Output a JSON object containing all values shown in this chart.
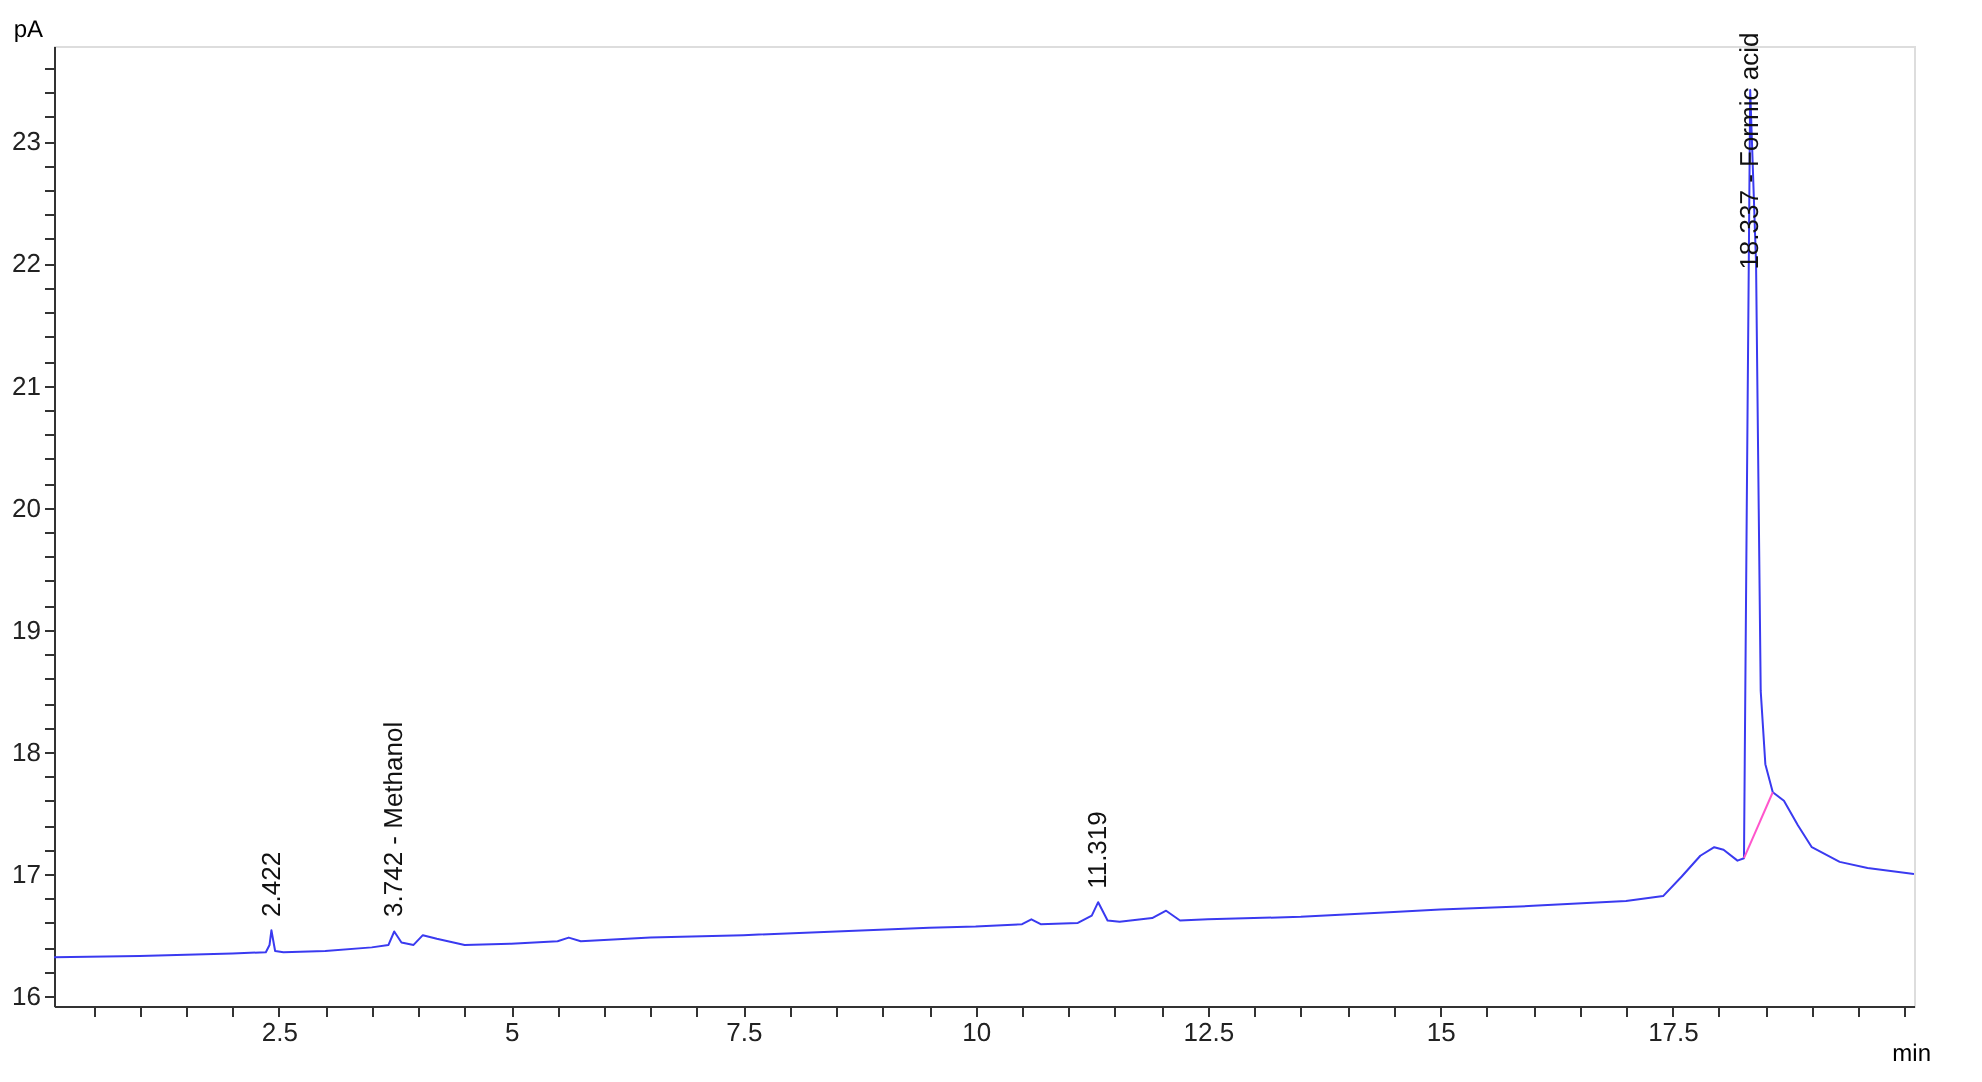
{
  "chart_data": {
    "type": "line",
    "xlabel": "min",
    "ylabel": "pA",
    "xlim": [
      0.08,
      20.1
    ],
    "ylim": [
      15.92,
      23.78
    ],
    "xticks": [
      {
        "value": 0.5,
        "label": null
      },
      {
        "value": 1.0,
        "label": null
      },
      {
        "value": 1.5,
        "label": null
      },
      {
        "value": 2.0,
        "label": null
      },
      2.5,
      {
        "value": 3.0,
        "label": null
      },
      {
        "value": 3.5,
        "label": null
      },
      {
        "value": 4.0,
        "label": null
      },
      {
        "value": 4.5,
        "label": null
      },
      5,
      {
        "value": 5.5,
        "label": null
      },
      {
        "value": 6.0,
        "label": null
      },
      {
        "value": 6.5,
        "label": null
      },
      {
        "value": 7.0,
        "label": null
      },
      7.5,
      {
        "value": 8.0,
        "label": null
      },
      {
        "value": 8.5,
        "label": null
      },
      {
        "value": 9.0,
        "label": null
      },
      {
        "value": 9.5,
        "label": null
      },
      10,
      {
        "value": 10.5,
        "label": null
      },
      {
        "value": 11.0,
        "label": null
      },
      {
        "value": 11.5,
        "label": null
      },
      {
        "value": 12.0,
        "label": null
      },
      12.5,
      {
        "value": 13.0,
        "label": null
      },
      {
        "value": 13.5,
        "label": null
      },
      {
        "value": 14.0,
        "label": null
      },
      {
        "value": 14.5,
        "label": null
      },
      15,
      {
        "value": 15.5,
        "label": null
      },
      {
        "value": 16.0,
        "label": null
      },
      {
        "value": 16.5,
        "label": null
      },
      {
        "value": 17.0,
        "label": null
      },
      17.5,
      {
        "value": 18.0,
        "label": null
      },
      {
        "value": 18.5,
        "label": null
      },
      {
        "value": 19.0,
        "label": null
      },
      {
        "value": 19.5,
        "label": null
      },
      {
        "value": 20.0,
        "label": null
      }
    ],
    "yticks": [
      16,
      {
        "value": 16.2,
        "label": null
      },
      {
        "value": 16.4,
        "label": null
      },
      {
        "value": 16.6,
        "label": null
      },
      {
        "value": 16.8,
        "label": null
      },
      17,
      {
        "value": 17.2,
        "label": null
      },
      {
        "value": 17.4,
        "label": null
      },
      {
        "value": 17.6,
        "label": null
      },
      {
        "value": 17.8,
        "label": null
      },
      18,
      {
        "value": 18.2,
        "label": null
      },
      {
        "value": 18.4,
        "label": null
      },
      {
        "value": 18.6,
        "label": null
      },
      {
        "value": 18.8,
        "label": null
      },
      19,
      {
        "value": 19.2,
        "label": null
      },
      {
        "value": 19.4,
        "label": null
      },
      {
        "value": 19.6,
        "label": null
      },
      {
        "value": 19.8,
        "label": null
      },
      20,
      {
        "value": 20.2,
        "label": null
      },
      {
        "value": 20.4,
        "label": null
      },
      {
        "value": 20.6,
        "label": null
      },
      {
        "value": 20.8,
        "label": null
      },
      21,
      {
        "value": 21.2,
        "label": null
      },
      {
        "value": 21.4,
        "label": null
      },
      {
        "value": 21.6,
        "label": null
      },
      {
        "value": 21.8,
        "label": null
      },
      22,
      {
        "value": 22.2,
        "label": null
      },
      {
        "value": 22.4,
        "label": null
      },
      {
        "value": 22.6,
        "label": null
      },
      {
        "value": 22.8,
        "label": null
      },
      23,
      {
        "value": 23.2,
        "label": null
      },
      {
        "value": 23.4,
        "label": null
      },
      {
        "value": 23.6,
        "label": null
      }
    ],
    "grid": false,
    "marker": "none",
    "line_style": "solid",
    "series": [
      {
        "color": "#3a3af0",
        "x": [
          0.08,
          1.0,
          2.0,
          2.36,
          2.4,
          2.42,
          2.46,
          2.55,
          3.0,
          3.5,
          3.68,
          3.742,
          3.82,
          3.95,
          4.05,
          4.2,
          4.5,
          5.0,
          5.5,
          5.62,
          5.75,
          6.5,
          7.5,
          8.5,
          9.5,
          10.0,
          10.5,
          10.6,
          10.7,
          11.1,
          11.25,
          11.319,
          11.42,
          11.55,
          11.9,
          12.05,
          12.2,
          12.5,
          13.5,
          14.5,
          15.0,
          16.0,
          17.0,
          17.4,
          17.6,
          17.8,
          17.95,
          18.05,
          18.2,
          18.27,
          18.3,
          18.337,
          18.4,
          18.45,
          18.5,
          18.58,
          18.7,
          18.85,
          19.0,
          19.3,
          19.6,
          20.1
        ],
        "values": [
          16.32,
          16.33,
          16.35,
          16.36,
          16.42,
          16.54,
          16.37,
          16.36,
          16.37,
          16.4,
          16.42,
          16.53,
          16.44,
          16.42,
          16.5,
          16.47,
          16.42,
          16.43,
          16.45,
          16.48,
          16.45,
          16.48,
          16.5,
          16.53,
          16.56,
          16.57,
          16.59,
          16.63,
          16.59,
          16.6,
          16.66,
          16.77,
          16.62,
          16.61,
          16.64,
          16.7,
          16.62,
          16.63,
          16.65,
          16.69,
          16.71,
          16.74,
          16.78,
          16.82,
          16.98,
          17.15,
          17.22,
          17.2,
          17.11,
          17.13,
          20.0,
          23.42,
          22.0,
          18.5,
          17.9,
          17.67,
          17.6,
          17.4,
          17.22,
          17.1,
          17.05,
          17.0
        ]
      },
      {
        "color": "#ff55cc",
        "x": [
          18.27,
          18.58
        ],
        "values": [
          17.13,
          17.67
        ]
      }
    ],
    "annotations": [
      {
        "text": "2.422",
        "x": 2.422,
        "y": 16.6
      },
      {
        "text": "3.742 -  Methanol",
        "x": 3.742,
        "y": 16.6
      },
      {
        "text": "11.319",
        "x": 11.319,
        "y": 16.83
      },
      {
        "text": "18.337 -  Formic acid",
        "x": 18.337,
        "y": 21.9
      }
    ]
  }
}
